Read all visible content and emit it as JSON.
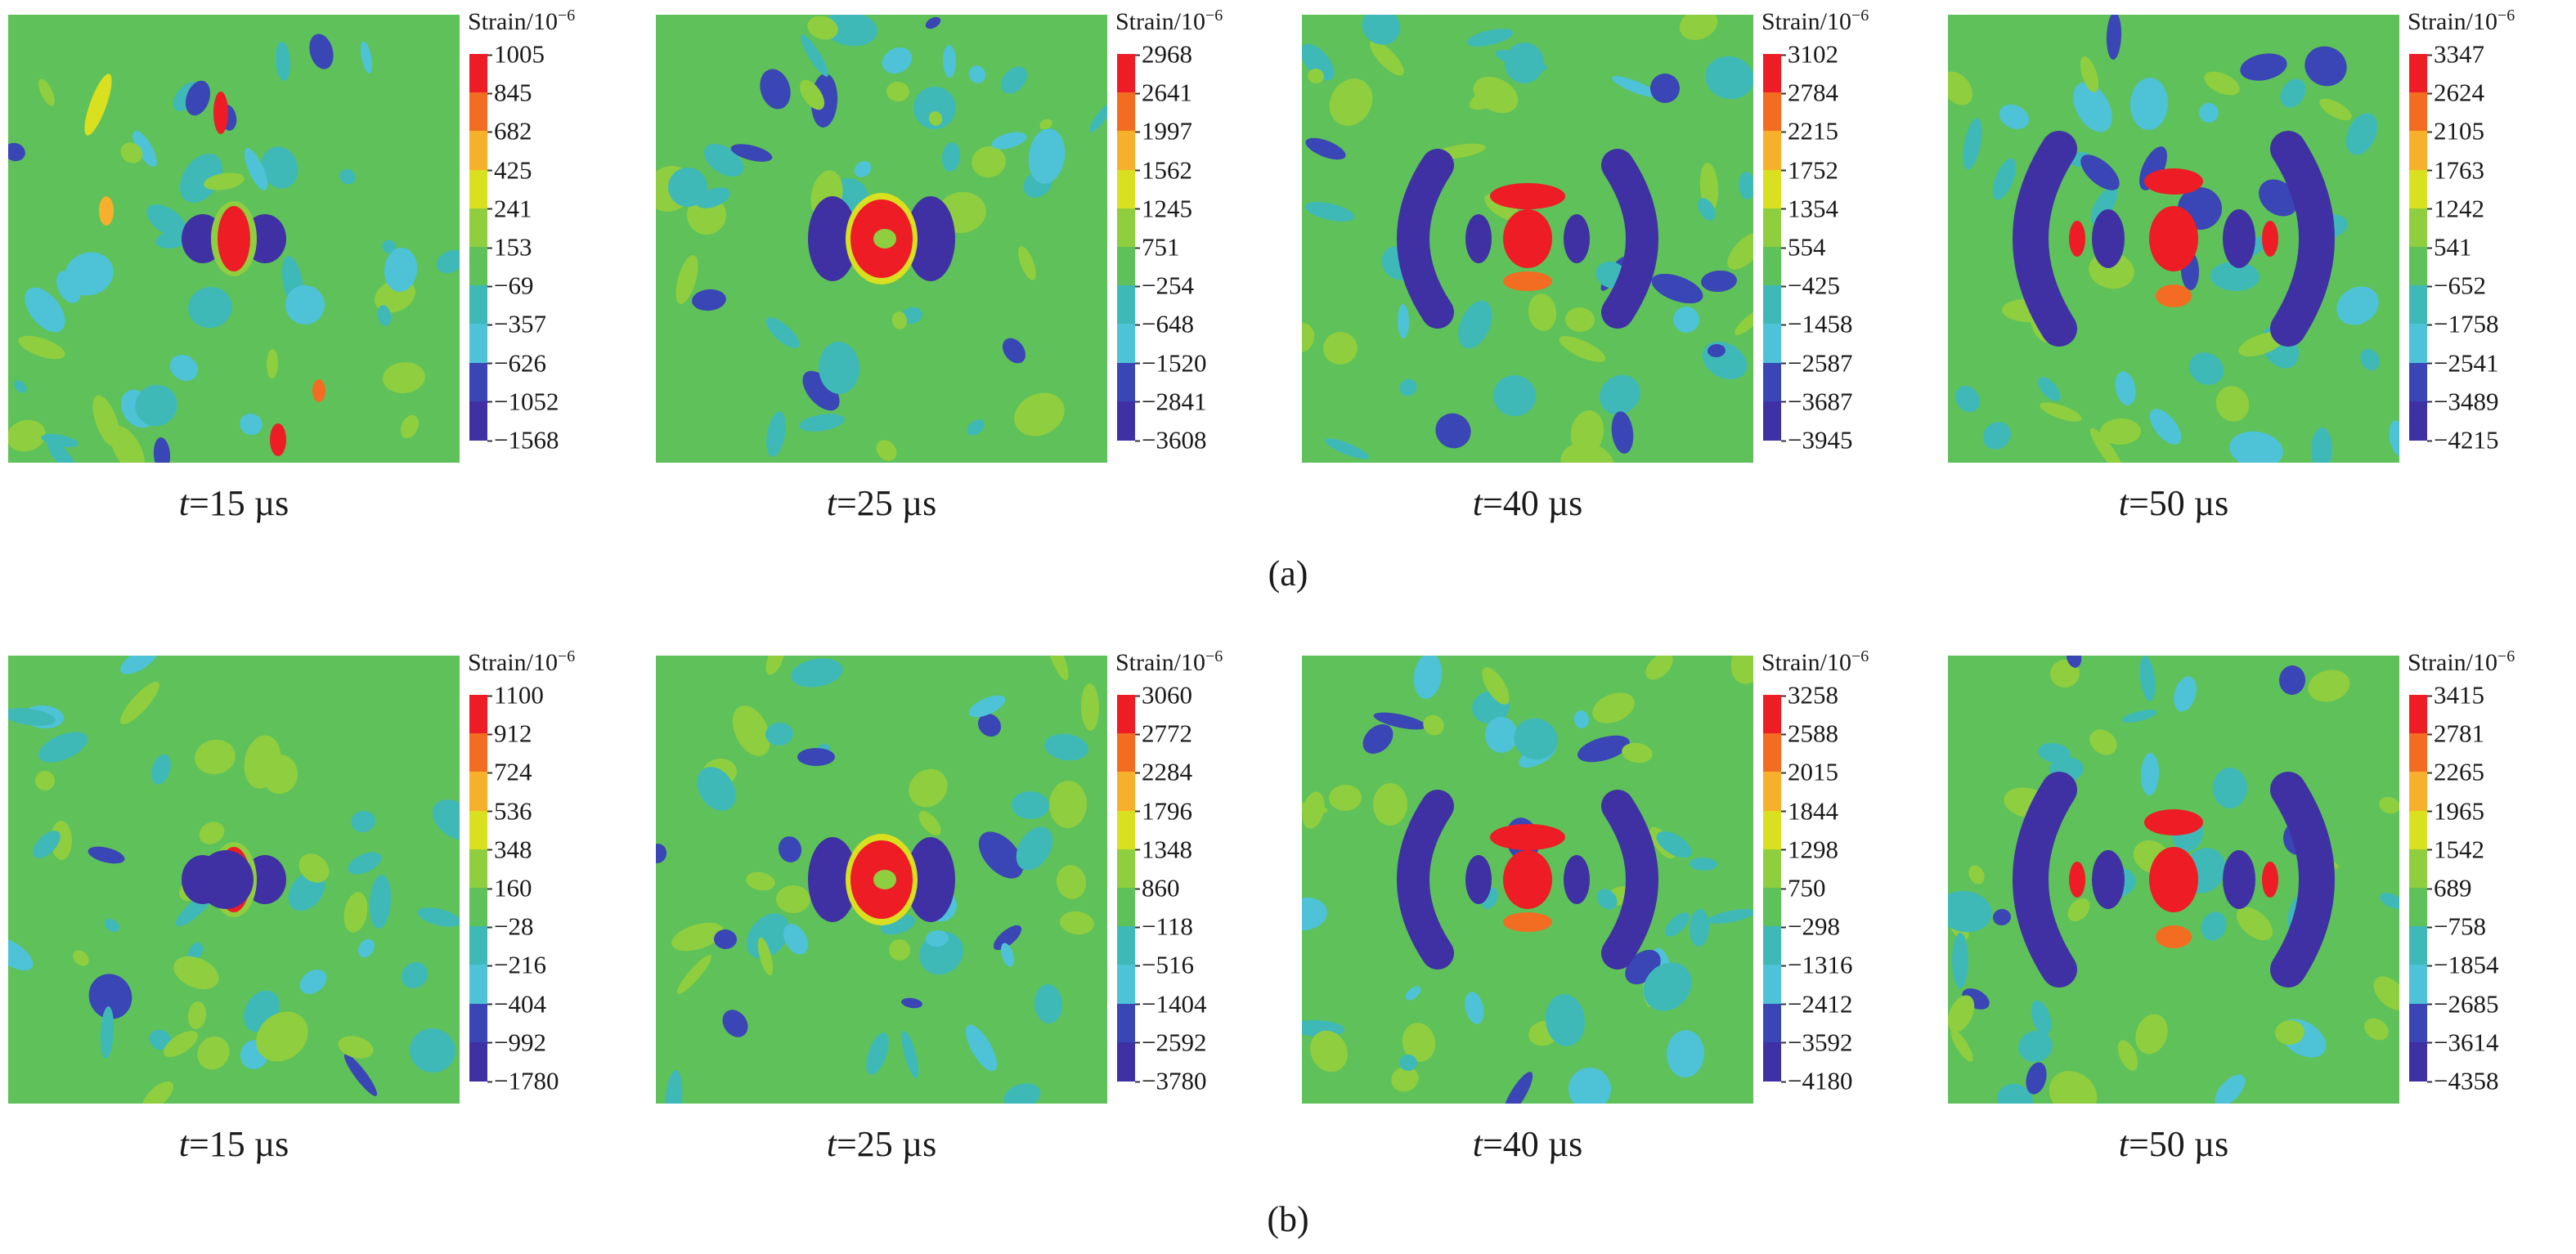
{
  "figure": {
    "panel_labels": [
      "(a)",
      "(b)"
    ],
    "colorbar_title": "Strain/10",
    "colorbar_exponent": "−6"
  },
  "colors": {
    "levels": [
      "#ee1c25",
      "#f26d21",
      "#f6b02b",
      "#d8e020",
      "#8fce3f",
      "#5fc15a",
      "#3fb9b8",
      "#4ec3d8",
      "#3a46b5",
      "#3f31a3",
      "#8a39b0"
    ],
    "background_field": "#5fc15a"
  },
  "chart_data": [
    {
      "type": "heatmap",
      "row": "(a)",
      "time_var": "t",
      "time_value": "15",
      "time_unit": "µs",
      "colorbar_ticks": [
        "1005",
        "845",
        "682",
        "425",
        "241",
        "153",
        "−69",
        "−357",
        "−626",
        "−1052",
        "−1568"
      ]
    },
    {
      "type": "heatmap",
      "row": "(a)",
      "time_var": "t",
      "time_value": "25",
      "time_unit": "µs",
      "colorbar_ticks": [
        "2968",
        "2641",
        "1997",
        "1562",
        "1245",
        "751",
        "−254",
        "−648",
        "−1520",
        "−2841",
        "−3608"
      ]
    },
    {
      "type": "heatmap",
      "row": "(a)",
      "time_var": "t",
      "time_value": "40",
      "time_unit": "µs",
      "colorbar_ticks": [
        "3102",
        "2784",
        "2215",
        "1752",
        "1354",
        "554",
        "−425",
        "−1458",
        "−2587",
        "−3687",
        "−3945"
      ]
    },
    {
      "type": "heatmap",
      "row": "(a)",
      "time_var": "t",
      "time_value": "50",
      "time_unit": "µs",
      "colorbar_ticks": [
        "3347",
        "2624",
        "2105",
        "1763",
        "1242",
        "541",
        "−652",
        "−1758",
        "−2541",
        "−3489",
        "−4215"
      ]
    },
    {
      "type": "heatmap",
      "row": "(b)",
      "time_var": "t",
      "time_value": "15",
      "time_unit": "µs",
      "colorbar_ticks": [
        "1100",
        "912",
        "724",
        "536",
        "348",
        "160",
        "−28",
        "−216",
        "−404",
        "−992",
        "−1780"
      ]
    },
    {
      "type": "heatmap",
      "row": "(b)",
      "time_var": "t",
      "time_value": "25",
      "time_unit": "µs",
      "colorbar_ticks": [
        "3060",
        "2772",
        "2284",
        "1796",
        "1348",
        "860",
        "−118",
        "−516",
        "−1404",
        "−2592",
        "−3780"
      ]
    },
    {
      "type": "heatmap",
      "row": "(b)",
      "time_var": "t",
      "time_value": "40",
      "time_unit": "µs",
      "colorbar_ticks": [
        "3258",
        "2588",
        "2015",
        "1844",
        "1298",
        "750",
        "−298",
        "−1316",
        "−2412",
        "−3592",
        "−4180"
      ]
    },
    {
      "type": "heatmap",
      "row": "(b)",
      "time_var": "t",
      "time_value": "50",
      "time_unit": "µs",
      "colorbar_ticks": [
        "3415",
        "2781",
        "2265",
        "1965",
        "1542",
        "689",
        "−758",
        "−1854",
        "−2685",
        "−3614",
        "−4358"
      ]
    }
  ]
}
